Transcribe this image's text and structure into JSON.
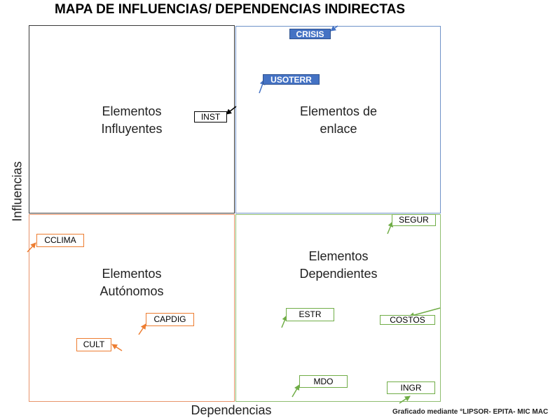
{
  "title": "MAPA DE INFLUENCIAS/ DEPENDENCIAS INDIRECTAS",
  "axes": {
    "y_label": "Influencias",
    "x_label": "Dependencias"
  },
  "quadrants": {
    "influyentes": {
      "line1": "Elementos",
      "line2": "Influyentes"
    },
    "enlace": {
      "line1": "Elementos de",
      "line2": "enlace"
    },
    "autonomos": {
      "line1": "Elementos",
      "line2": "Autónomos"
    },
    "dependientes": {
      "line1": "Elementos",
      "line2": "Dependientes"
    }
  },
  "credit": "Graficado mediante °LIPSOR- EPITA- MIC MAC",
  "colors": {
    "influyentes": "#3a3a3a",
    "enlace": "#4472c4",
    "autonomos": "#ed7d31",
    "dependientes": "#70ad47"
  },
  "chart_data": {
    "type": "scatter",
    "title": "MAPA DE INFLUENCIAS/ DEPENDENCIAS INDIRECTAS",
    "xlabel": "Dependencias",
    "ylabel": "Influencias",
    "points": [
      {
        "label": "CRISIS",
        "quadrant": "enlace"
      },
      {
        "label": "USOTERR",
        "quadrant": "enlace"
      },
      {
        "label": "INST",
        "quadrant": "influyentes"
      },
      {
        "label": "CCLIMA",
        "quadrant": "autonomos"
      },
      {
        "label": "CAPDIG",
        "quadrant": "autonomos"
      },
      {
        "label": "CULT",
        "quadrant": "autonomos"
      },
      {
        "label": "SEGUR",
        "quadrant": "dependientes"
      },
      {
        "label": "ESTR",
        "quadrant": "dependientes"
      },
      {
        "label": "COSTOS",
        "quadrant": "dependientes"
      },
      {
        "label": "MDO",
        "quadrant": "dependientes"
      },
      {
        "label": "INGR",
        "quadrant": "dependientes"
      }
    ]
  }
}
